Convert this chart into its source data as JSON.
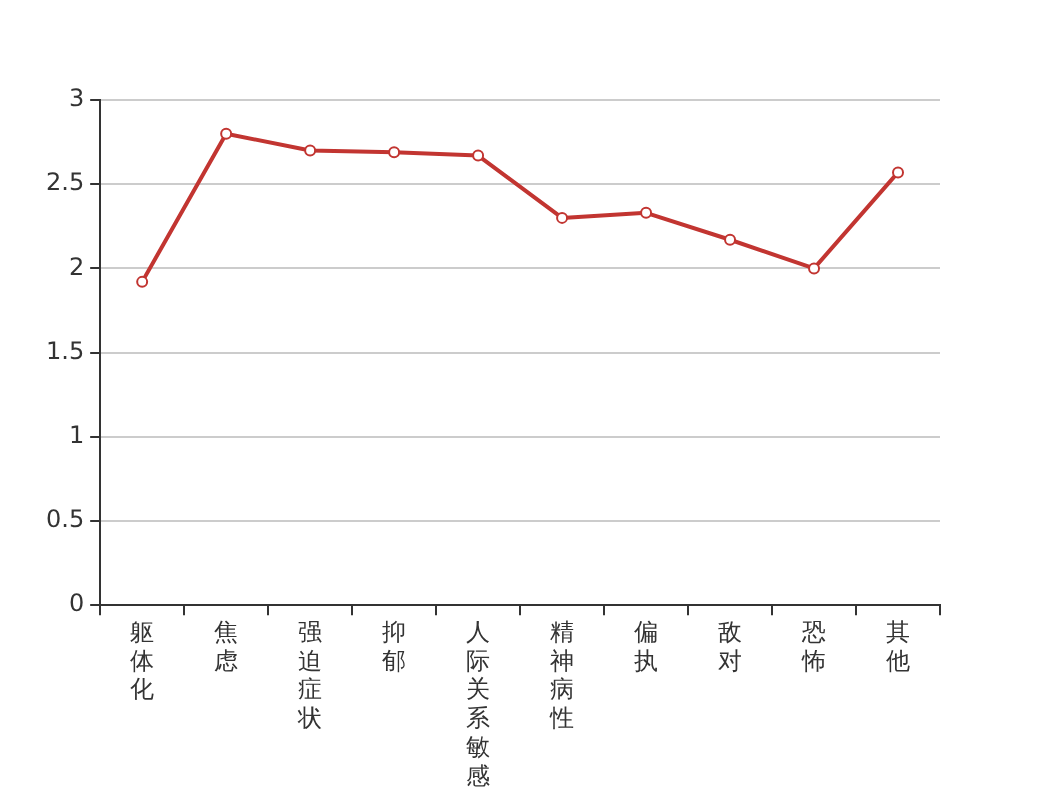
{
  "chart_data": {
    "type": "line",
    "categories": [
      "躯体化",
      "焦虑",
      "强迫症状",
      "抑郁",
      "人际关系敏感",
      "精神病性",
      "偏执",
      "敌对",
      "恐怖",
      "其他"
    ],
    "series": [
      {
        "color": "#c23531",
        "values": [
          1.92,
          2.8,
          2.7,
          2.69,
          2.67,
          2.3,
          2.33,
          2.17,
          2.0,
          2.57
        ]
      }
    ],
    "ylim": [
      0,
      3
    ],
    "yticks": [
      0,
      0.5,
      1,
      1.5,
      2,
      2.5,
      3
    ],
    "grid": "y",
    "legend": false,
    "marker": "circle",
    "line_style": "solid"
  }
}
